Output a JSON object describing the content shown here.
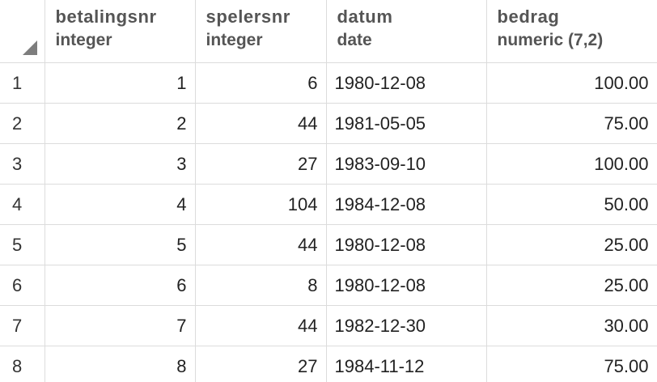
{
  "columns": [
    {
      "name": "betalingsnr",
      "type": "integer"
    },
    {
      "name": "spelersnr",
      "type": "integer"
    },
    {
      "name": "datum",
      "type": "date"
    },
    {
      "name": "bedrag",
      "type": "numeric (7,2)"
    }
  ],
  "rows": [
    {
      "rownum": "1",
      "betalingsnr": "1",
      "spelersnr": "6",
      "datum": "1980-12-08",
      "bedrag": "100.00"
    },
    {
      "rownum": "2",
      "betalingsnr": "2",
      "spelersnr": "44",
      "datum": "1981-05-05",
      "bedrag": "75.00"
    },
    {
      "rownum": "3",
      "betalingsnr": "3",
      "spelersnr": "27",
      "datum": "1983-09-10",
      "bedrag": "100.00"
    },
    {
      "rownum": "4",
      "betalingsnr": "4",
      "spelersnr": "104",
      "datum": "1984-12-08",
      "bedrag": "50.00"
    },
    {
      "rownum": "5",
      "betalingsnr": "5",
      "spelersnr": "44",
      "datum": "1980-12-08",
      "bedrag": "25.00"
    },
    {
      "rownum": "6",
      "betalingsnr": "6",
      "spelersnr": "8",
      "datum": "1980-12-08",
      "bedrag": "25.00"
    },
    {
      "rownum": "7",
      "betalingsnr": "7",
      "spelersnr": "44",
      "datum": "1982-12-30",
      "bedrag": "30.00"
    },
    {
      "rownum": "8",
      "betalingsnr": "8",
      "spelersnr": "27",
      "datum": "1984-11-12",
      "bedrag": "75.00"
    }
  ]
}
